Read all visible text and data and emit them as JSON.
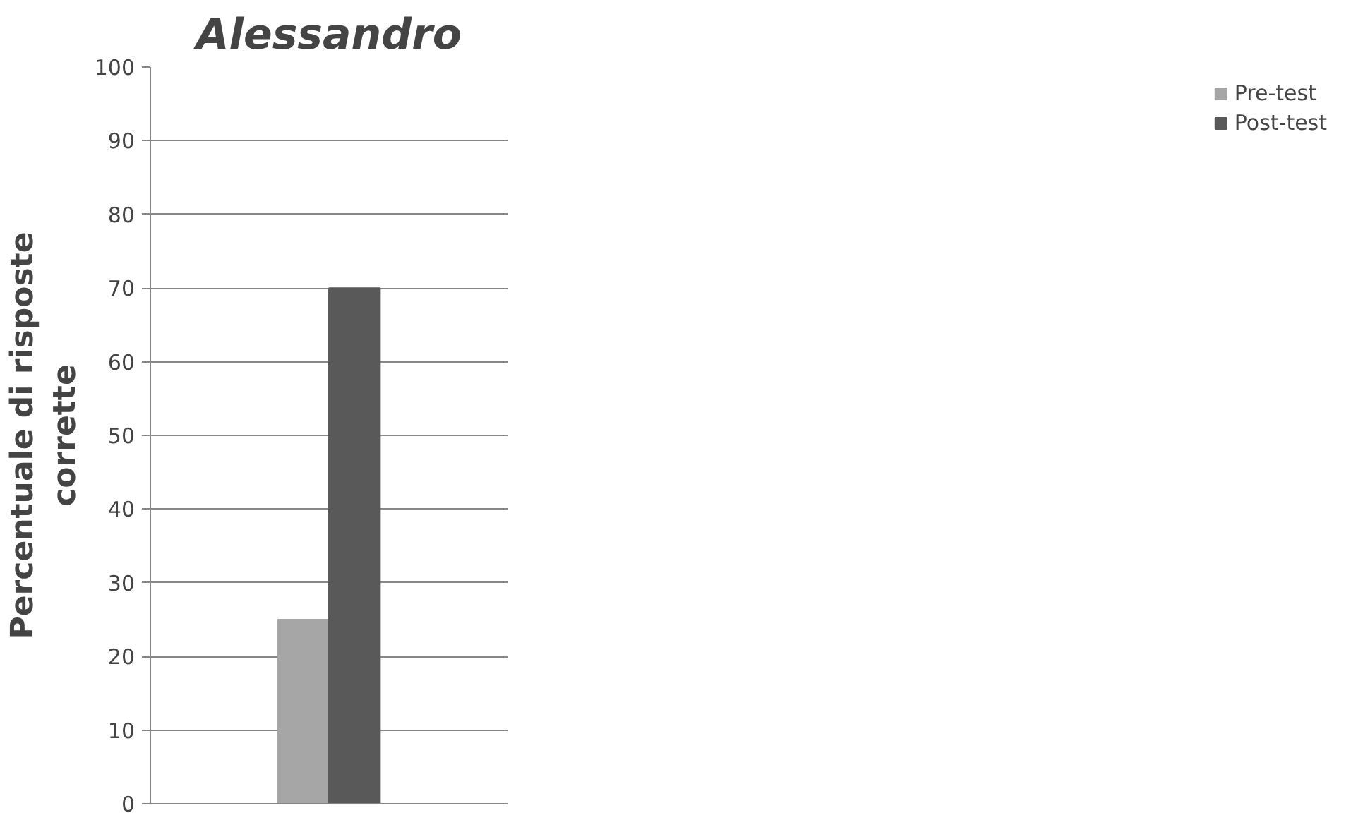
{
  "chart_data": {
    "type": "bar",
    "title": "Alessandro",
    "ylabel": "Percentuale di risposte corrette",
    "categories": [
      null
    ],
    "series": [
      {
        "name": "Pre-test",
        "color": "#a6a6a6",
        "values": [
          25
        ]
      },
      {
        "name": "Post-test",
        "color": "#595959",
        "values": [
          70
        ]
      }
    ],
    "ylim": [
      0,
      100
    ],
    "yticks": [
      0,
      10,
      20,
      30,
      40,
      50,
      60,
      70,
      80,
      90,
      100
    ],
    "grid": "y",
    "legend": "right"
  }
}
